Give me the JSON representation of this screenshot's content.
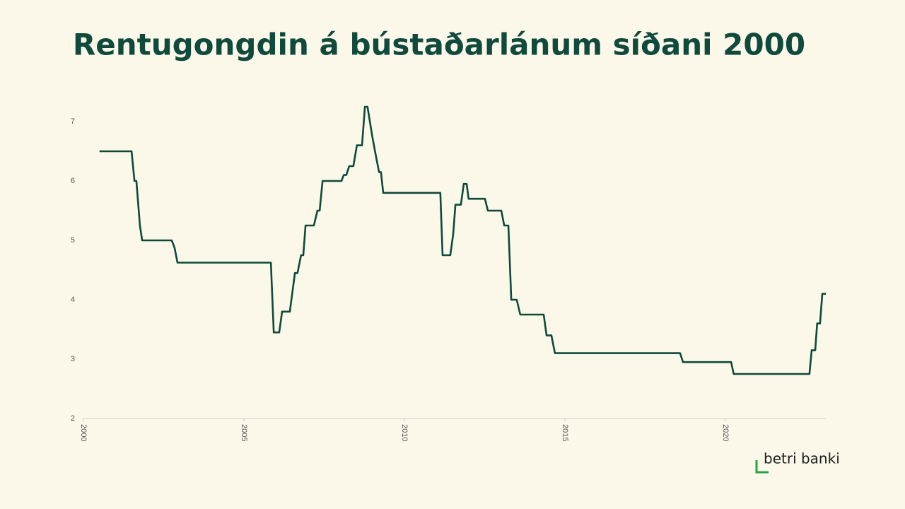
{
  "chart_data": {
    "type": "line",
    "title": "Rentugongdin á bústaðarlánum síðani 2000",
    "x": [
      2000.5,
      2001.5,
      2001.59,
      2001.65,
      2001.76,
      2001.83,
      2002.75,
      2002.84,
      2002.93,
      2005.84,
      2005.93,
      2006.1,
      2006.19,
      2006.43,
      2006.59,
      2006.67,
      2006.78,
      2006.85,
      2006.92,
      2007.18,
      2007.29,
      2007.36,
      2007.45,
      2008.04,
      2008.11,
      2008.19,
      2008.28,
      2008.41,
      2008.52,
      2008.68,
      2008.77,
      2008.85,
      2008.94,
      2009.0,
      2009.12,
      2009.21,
      2009.27,
      2009.34,
      2011.12,
      2011.19,
      2011.43,
      2011.52,
      2011.59,
      2011.76,
      2011.85,
      2011.94,
      2012.0,
      2012.51,
      2012.6,
      2013.02,
      2013.11,
      2013.24,
      2013.33,
      2013.5,
      2013.61,
      2014.34,
      2014.43,
      2014.58,
      2014.69,
      2018.59,
      2018.68,
      2020.18,
      2020.26,
      2022.62,
      2022.69,
      2022.8,
      2022.86,
      2022.95,
      2023.02,
      2023.13
    ],
    "series": [
      {
        "color": "#0d4a3a",
        "values": [
          6.5,
          6.5,
          6.0,
          6.0,
          5.25,
          5.0,
          5.0,
          4.875,
          4.625,
          4.625,
          3.45,
          3.45,
          3.8,
          3.8,
          4.45,
          4.45,
          4.75,
          4.75,
          5.25,
          5.25,
          5.5,
          5.5,
          6.0,
          6.0,
          6.1,
          6.1,
          6.25,
          6.25,
          6.6,
          6.6,
          7.25,
          7.25,
          6.95,
          6.75,
          6.4,
          6.15,
          6.15,
          5.8,
          5.8,
          4.75,
          4.75,
          5.1,
          5.6,
          5.6,
          5.95,
          5.95,
          5.7,
          5.7,
          5.5,
          5.5,
          5.25,
          5.25,
          4.0,
          4.0,
          3.75,
          3.75,
          3.4,
          3.4,
          3.1,
          3.1,
          2.95,
          2.95,
          2.75,
          2.75,
          3.15,
          3.15,
          3.6,
          3.6,
          4.1,
          4.1
        ]
      }
    ],
    "xlim": [
      2000,
      2023.13
    ],
    "xticks": [
      2000,
      2005,
      2010,
      2015,
      2020
    ],
    "ylim": [
      2,
      7.5
    ],
    "yticks": [
      2,
      3,
      4,
      5,
      6,
      7
    ]
  },
  "logo": "betri banki"
}
